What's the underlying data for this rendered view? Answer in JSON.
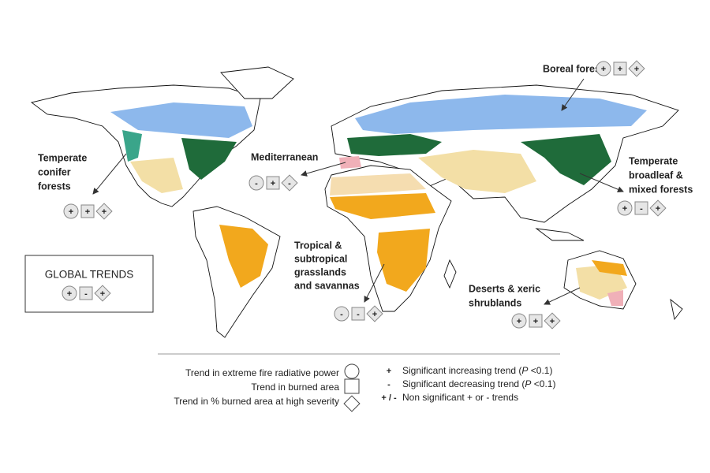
{
  "regions": [
    {
      "label": [
        "Boreal forests"
      ],
      "color": "#5b9bd5",
      "trends": [
        {
          "sign": "+",
          "color": "#d62728"
        },
        {
          "sign": "+",
          "color": "#222222"
        },
        {
          "sign": "+",
          "color": "#d62728"
        }
      ]
    },
    {
      "label": [
        "Mediterranean"
      ],
      "color": "#e8a0a8",
      "trends": [
        {
          "sign": "-",
          "color": "#d62728"
        },
        {
          "sign": "+",
          "color": "#222222"
        },
        {
          "sign": "-",
          "color": "#222222"
        }
      ]
    },
    {
      "label": [
        "Temperate",
        "conifer",
        "forests"
      ],
      "color": "#3aa58a",
      "trends": [
        {
          "sign": "+",
          "color": "#d62728"
        },
        {
          "sign": "+",
          "color": "#222222"
        },
        {
          "sign": "+",
          "color": "#222222"
        }
      ]
    },
    {
      "label": [
        "Temperate",
        "broadleaf &",
        "mixed forests"
      ],
      "color": "#1e5c2e",
      "trends": [
        {
          "sign": "+",
          "color": "#222222"
        },
        {
          "sign": "-",
          "color": "#222222"
        },
        {
          "sign": "+",
          "color": "#222222"
        }
      ]
    },
    {
      "label": [
        "Tropical &",
        "subtropical",
        "grasslands",
        "and savannas"
      ],
      "color": "#e0a010",
      "trends": [
        {
          "sign": "-",
          "color": "#222222"
        },
        {
          "sign": "-",
          "color": "#d62728"
        },
        {
          "sign": "+",
          "color": "#222222"
        }
      ]
    },
    {
      "label": [
        "Deserts & xeric",
        "shrublands"
      ],
      "color": "#e8c56a",
      "trends": [
        {
          "sign": "+",
          "color": "#222222"
        },
        {
          "sign": "+",
          "color": "#222222"
        },
        {
          "sign": "+",
          "color": "#d62728"
        }
      ]
    }
  ],
  "global_trends": {
    "title": "GLOBAL TRENDS",
    "trends": [
      {
        "sign": "+",
        "color": "#d62728"
      },
      {
        "sign": "-",
        "color": "#d62728"
      },
      {
        "sign": "+",
        "color": "#d62728"
      }
    ]
  },
  "legend": {
    "symbols": [
      "Trend in extreme fire radiative power",
      "Trend in burned area",
      "Trend in % burned area at high severity"
    ],
    "signs": [
      {
        "sign": "+",
        "before": "Significant increasing trend (",
        "italic": "P",
        "after": " <0.1)"
      },
      {
        "sign": "-",
        "before": "Significant decreasing trend (",
        "italic": "P",
        "after": " <0.1)"
      },
      {
        "sign": "+ / -",
        "text": "Non significant + or - trends"
      }
    ]
  }
}
